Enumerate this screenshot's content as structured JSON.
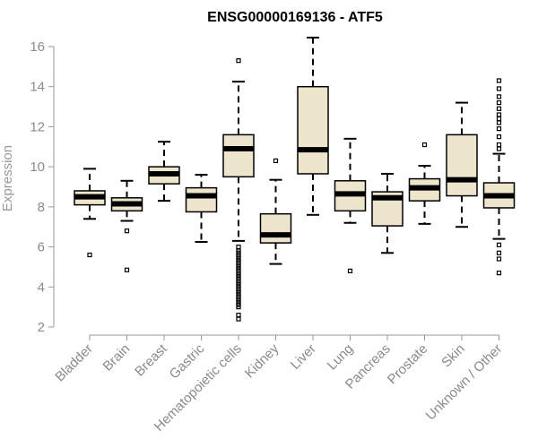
{
  "chart_data": {
    "type": "boxplot",
    "title": "ENSG00000169136 - ATF5",
    "ylabel": "Expression",
    "xlabel": "",
    "ylim": [
      2,
      16
    ],
    "yticks": [
      2,
      4,
      6,
      8,
      10,
      12,
      14,
      16
    ],
    "grid": false,
    "box_color": "#ede6cc",
    "categories": [
      "Bladder",
      "Brain",
      "Breast",
      "Gastric",
      "Hematopoietic cells",
      "Kidney",
      "Liver",
      "Lung",
      "Pancreas",
      "Prostate",
      "Skin",
      "Unknown / Other"
    ],
    "boxes": [
      {
        "whisker_low": 7.4,
        "q1": 8.1,
        "median": 8.5,
        "q3": 8.8,
        "whisker_high": 9.9,
        "outliers": [
          5.6
        ]
      },
      {
        "whisker_low": 7.3,
        "q1": 7.8,
        "median": 8.15,
        "q3": 8.45,
        "whisker_high": 9.3,
        "outliers": [
          6.8,
          4.85
        ]
      },
      {
        "whisker_low": 8.3,
        "q1": 9.15,
        "median": 9.65,
        "q3": 10.0,
        "whisker_high": 11.25,
        "outliers": []
      },
      {
        "whisker_low": 6.25,
        "q1": 7.75,
        "median": 8.55,
        "q3": 8.95,
        "whisker_high": 9.6,
        "outliers": []
      },
      {
        "whisker_low": 6.3,
        "q1": 9.5,
        "median": 10.9,
        "q3": 11.6,
        "whisker_high": 14.25,
        "outliers": [
          15.3,
          6.0,
          5.8,
          5.7,
          5.6,
          5.5,
          5.4,
          5.3,
          5.2,
          5.1,
          5.0,
          4.9,
          4.8,
          4.7,
          4.6,
          4.5,
          4.4,
          4.3,
          4.2,
          4.1,
          4.0,
          3.9,
          3.8,
          3.7,
          3.6,
          3.5,
          3.4,
          3.3,
          3.2,
          3.1,
          3.0,
          2.6,
          2.4
        ]
      },
      {
        "whisker_low": 5.15,
        "q1": 6.2,
        "median": 6.6,
        "q3": 7.65,
        "whisker_high": 9.35,
        "outliers": [
          10.3
        ]
      },
      {
        "whisker_low": 7.6,
        "q1": 9.65,
        "median": 10.85,
        "q3": 14.0,
        "whisker_high": 16.45,
        "outliers": []
      },
      {
        "whisker_low": 7.2,
        "q1": 7.8,
        "median": 8.65,
        "q3": 9.3,
        "whisker_high": 11.4,
        "outliers": [
          4.8
        ]
      },
      {
        "whisker_low": 5.7,
        "q1": 7.05,
        "median": 8.45,
        "q3": 8.75,
        "whisker_high": 9.65,
        "outliers": []
      },
      {
        "whisker_low": 7.15,
        "q1": 8.3,
        "median": 8.95,
        "q3": 9.4,
        "whisker_high": 10.05,
        "outliers": [
          11.1
        ]
      },
      {
        "whisker_low": 7.0,
        "q1": 8.55,
        "median": 9.35,
        "q3": 11.6,
        "whisker_high": 13.2,
        "outliers": []
      },
      {
        "whisker_low": 6.4,
        "q1": 7.95,
        "median": 8.55,
        "q3": 9.2,
        "whisker_high": 10.65,
        "outliers": [
          14.3,
          13.9,
          13.5,
          13.2,
          12.9,
          12.6,
          12.4,
          12.2,
          11.9,
          11.5,
          11.1,
          10.9,
          6.1,
          5.7,
          5.4,
          4.7
        ]
      }
    ]
  }
}
